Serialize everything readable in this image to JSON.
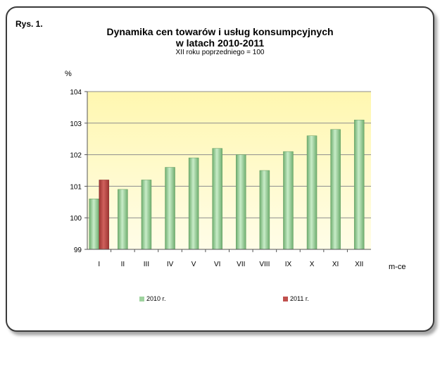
{
  "figure_label": "Rys. 1.",
  "colors": {
    "series_2010": "#9fd39f",
    "series_2011": "#c0504d",
    "plot_bg_top": "#fff7b0",
    "plot_bg_bottom": "#fffde8"
  },
  "chart_data": {
    "type": "bar",
    "title_line1": "Dynamika cen towarów i usług konsumpcyjnych",
    "title_line2": "w latach 2010-2011",
    "subtitle": "XII roku poprzedniego = 100",
    "ylabel": "%",
    "xlabel": "m-ce",
    "ylim": [
      99,
      104
    ],
    "yticks": [
      99,
      100,
      101,
      102,
      103,
      104
    ],
    "ytick_labels": [
      "99",
      "100",
      "101",
      "102",
      "103",
      "104"
    ],
    "grid": true,
    "legend_position": "bottom",
    "categories": [
      "I",
      "II",
      "III",
      "IV",
      "V",
      "VI",
      "VII",
      "VIII",
      "IX",
      "X",
      "XI",
      "XII"
    ],
    "series": [
      {
        "name": "2010 r.",
        "values": [
          100.6,
          100.9,
          101.2,
          101.6,
          101.9,
          102.2,
          102.0,
          101.5,
          102.1,
          102.6,
          102.8,
          103.1
        ]
      },
      {
        "name": "2011 r.",
        "values": [
          101.2,
          null,
          null,
          null,
          null,
          null,
          null,
          null,
          null,
          null,
          null,
          null
        ]
      }
    ]
  }
}
